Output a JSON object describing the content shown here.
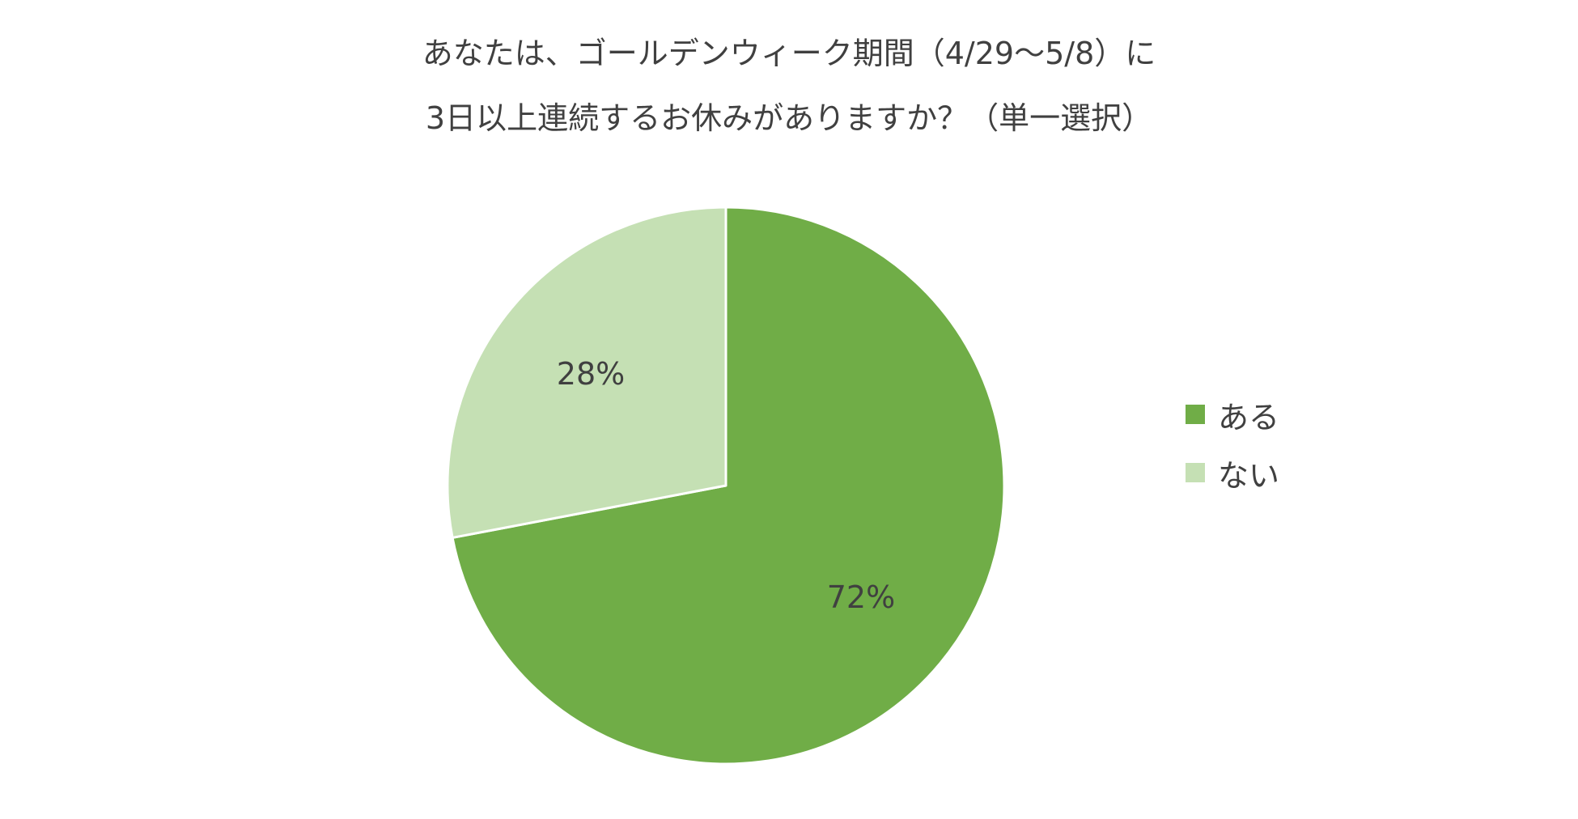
{
  "colors": {
    "background": "#ffffff",
    "text": "#404040",
    "slice_border": "#ffffff"
  },
  "chart_data": {
    "type": "pie",
    "title": "あなたは、ゴールデンウィーク期間（4/29〜5/8）に\n3日以上連続するお休みがありますか？（単一選択）",
    "title_lines": [
      "あなたは、ゴールデンウィーク期間（4/29〜5/8）に",
      "3日以上連続するお休みがありますか？（単一選択）"
    ],
    "categories": [
      "ある",
      "ない"
    ],
    "values": [
      72,
      28
    ],
    "data_labels": [
      "72%",
      "28%"
    ],
    "colors": [
      "#70AD47",
      "#C5E0B4"
    ],
    "start_angle": "12 o'clock",
    "direction": "clockwise",
    "legend": {
      "position": "right",
      "entries": [
        "ある",
        "ない"
      ]
    }
  }
}
